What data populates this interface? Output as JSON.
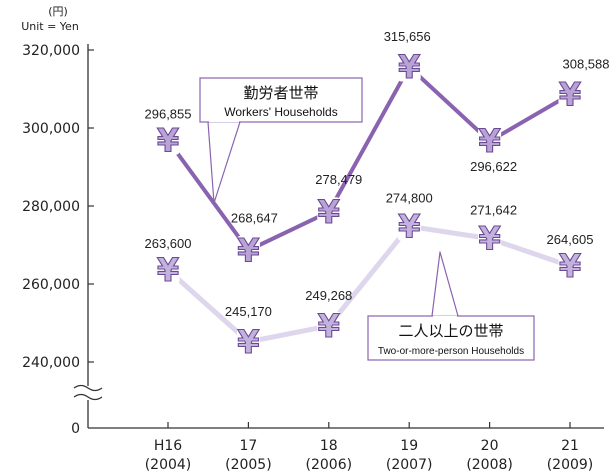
{
  "chart_data": {
    "type": "line",
    "unit_label_jp": "(円)",
    "unit_label_en": "Unit = Yen",
    "categories": [
      {
        "top": "H16",
        "bottom": "(2004)"
      },
      {
        "top": "17",
        "bottom": "(2005)"
      },
      {
        "top": "18",
        "bottom": "(2006)"
      },
      {
        "top": "19",
        "bottom": "(2007)"
      },
      {
        "top": "20",
        "bottom": "(2008)"
      },
      {
        "top": "21",
        "bottom": "(2009)"
      }
    ],
    "y_ticks": [
      {
        "value": 320000,
        "label": "320,000"
      },
      {
        "value": 300000,
        "label": "300,000"
      },
      {
        "value": 280000,
        "label": "280,000"
      },
      {
        "value": 260000,
        "label": "260,000"
      },
      {
        "value": 240000,
        "label": "240,000"
      }
    ],
    "y_zero_label": "0",
    "ylim": [
      240000,
      320000
    ],
    "axis_break": true,
    "series": [
      {
        "key": "workers",
        "name_jp": "勤労者世帯",
        "name_en": "Workers' Households",
        "values": [
          296855,
          268647,
          278479,
          315656,
          296622,
          308588
        ],
        "labels": [
          "296,855",
          "268,647",
          "278,479",
          "315,656",
          "296,622",
          "308,588"
        ],
        "line_color": "#8a63b0",
        "marker_fill": "#b9a3d6",
        "marker_symbol": "¥"
      },
      {
        "key": "two_or_more",
        "name_jp": "二人以上の世帯",
        "name_en": "Two-or-more-person Households",
        "values": [
          263600,
          245170,
          249268,
          274800,
          271642,
          264605
        ],
        "labels": [
          "263,600",
          "245,170",
          "249,268",
          "274,800",
          "271,642",
          "264,605"
        ],
        "line_color": "#ded6ec",
        "marker_fill": "#c3b2de",
        "marker_symbol": "¥"
      }
    ],
    "grid": false
  }
}
